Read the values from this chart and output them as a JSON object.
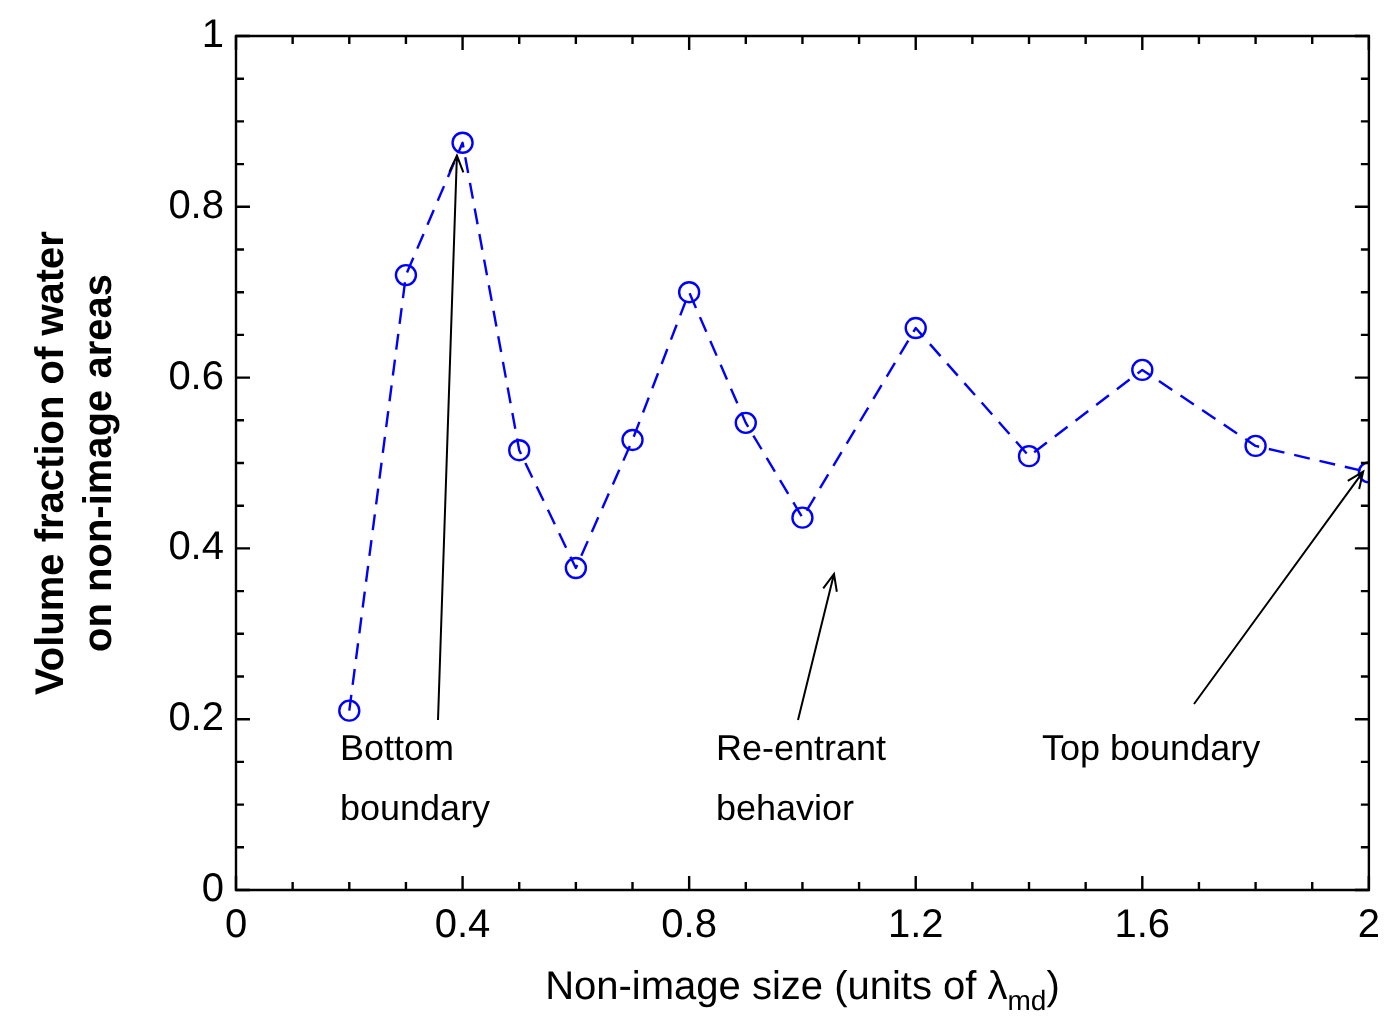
{
  "chart_data": {
    "type": "line",
    "xlabel": "Non-image size (units of λ$_{md}$)",
    "ylabel": "Volume fraction of water\non non-image areas",
    "x": [
      0.2,
      0.3,
      0.4,
      0.5,
      0.6,
      0.7,
      0.8,
      0.9,
      1.0,
      1.2,
      1.4,
      1.6,
      1.8,
      2.0
    ],
    "series": [
      {
        "color": "#0000ff",
        "values": [
          0.21,
          0.72,
          0.875,
          0.515,
          0.377,
          0.527,
          0.7,
          0.547,
          0.436,
          0.658,
          0.508,
          0.609,
          0.52,
          0.489
        ]
      }
    ],
    "xlim": [
      0,
      2
    ],
    "ylim": [
      0,
      1
    ],
    "xticks": [
      0,
      {
        "value": 0.1,
        "label": null
      },
      {
        "value": 0.2,
        "label": null
      },
      {
        "value": 0.3,
        "label": null
      },
      0.4,
      {
        "value": 0.5,
        "label": null
      },
      {
        "value": 0.6,
        "label": null
      },
      {
        "value": 0.7,
        "label": null
      },
      0.8,
      {
        "value": 0.9,
        "label": null
      },
      {
        "value": 1.0,
        "label": null
      },
      {
        "value": 1.1,
        "label": null
      },
      1.2,
      {
        "value": 1.3,
        "label": null
      },
      {
        "value": 1.4,
        "label": null
      },
      {
        "value": 1.5,
        "label": null
      },
      1.6,
      {
        "value": 1.7,
        "label": null
      },
      {
        "value": 1.8,
        "label": null
      },
      {
        "value": 1.9,
        "label": null
      },
      2
    ],
    "yticks": [
      0,
      {
        "value": 0.05,
        "label": null
      },
      {
        "value": 0.1,
        "label": null
      },
      {
        "value": 0.15,
        "label": null
      },
      0.2,
      {
        "value": 0.25,
        "label": null
      },
      {
        "value": 0.3,
        "label": null
      },
      {
        "value": 0.35,
        "label": null
      },
      0.4,
      {
        "value": 0.45,
        "label": null
      },
      {
        "value": 0.5,
        "label": null
      },
      {
        "value": 0.55,
        "label": null
      },
      0.6,
      {
        "value": 0.65,
        "label": null
      },
      {
        "value": 0.7,
        "label": null
      },
      {
        "value": 0.75,
        "label": null
      },
      0.8,
      {
        "value": 0.85,
        "label": null
      },
      {
        "value": 0.9,
        "label": null
      },
      {
        "value": 0.95,
        "label": null
      },
      1
    ],
    "grid": false,
    "legend": false,
    "marker": "circle",
    "line_style": "dashed",
    "annotations": [
      {
        "text": "Bottom\nboundary",
        "x": 0.39,
        "y": 0.86
      },
      "Re-entrant\nbehavior",
      {
        "text": "Top boundary",
        "x": 1.99,
        "y": 0.49
      }
    ]
  }
}
